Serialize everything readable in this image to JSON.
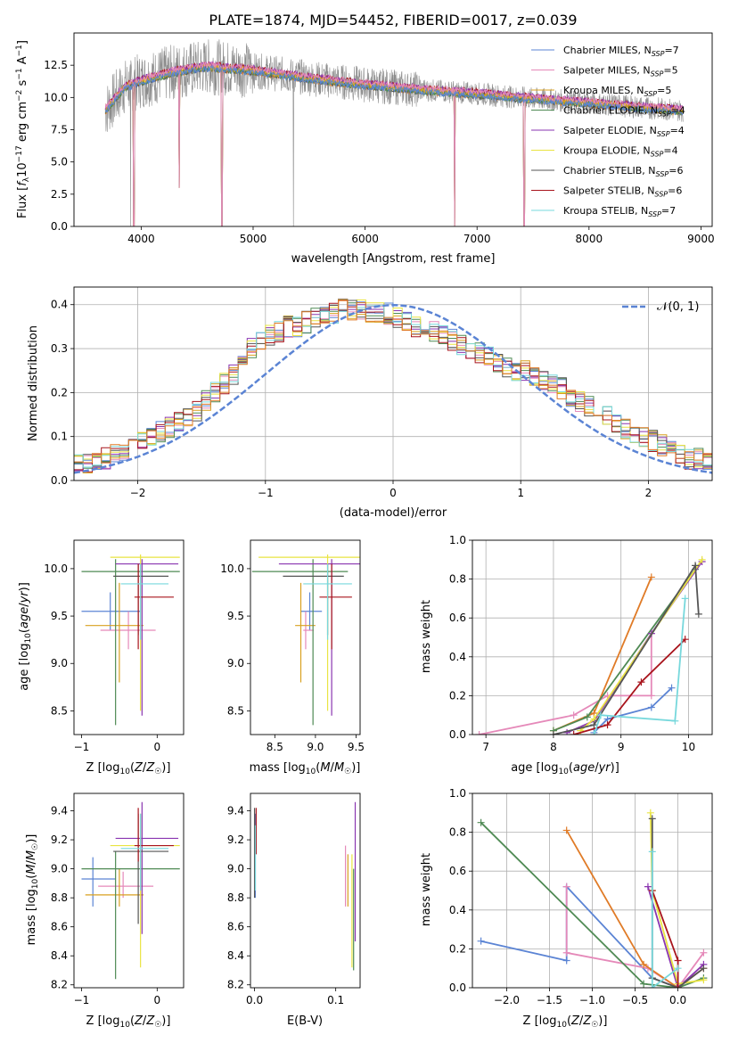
{
  "figure": {
    "title": "PLATE=1874, MJD=54452, FIBERID=0017, z=0.039"
  },
  "colors": {
    "models": [
      "#5b84d4",
      "#e589b9",
      "#d8a11f",
      "#4f8a54",
      "#8a35b0",
      "#e9e442",
      "#555555",
      "#a8141c",
      "#77d8dc"
    ],
    "extra_orange": "#e07b27",
    "data_gray": "#8c8c8c",
    "normal_dash": "#5b84d4",
    "grid": "#b0b0b0"
  },
  "legend_spectrum": [
    {
      "prefix": "Chabrier MILES, N",
      "sub": "SSP",
      "suffix": "=7"
    },
    {
      "prefix": "Salpeter MILES, N",
      "sub": "SSP",
      "suffix": "=5"
    },
    {
      "prefix": "Kroupa MILES, N",
      "sub": "SSP",
      "suffix": "=5"
    },
    {
      "prefix": "Chabrier ELODIE, N",
      "sub": "SSP",
      "suffix": "=4"
    },
    {
      "prefix": "Salpeter ELODIE, N",
      "sub": "SSP",
      "suffix": "=4"
    },
    {
      "prefix": "Kroupa ELODIE, N",
      "sub": "SSP",
      "suffix": "=4"
    },
    {
      "prefix": "Chabrier STELIB, N",
      "sub": "SSP",
      "suffix": "=6"
    },
    {
      "prefix": "Salpeter STELIB, N",
      "sub": "SSP",
      "suffix": "=6"
    },
    {
      "prefix": "Kroupa STELIB, N",
      "sub": "SSP",
      "suffix": "=7"
    }
  ],
  "legend_hist": "𝒩(0, 1)",
  "chart_data": [
    {
      "id": "spectrum",
      "type": "line",
      "xlabel": "wavelength [Angstrom, rest frame]",
      "ylabel": "Flux [f_λ 10^-17 erg cm^-2 s^-1 A^-1]",
      "xlim": [
        3400,
        9100
      ],
      "ylim": [
        0,
        15
      ],
      "xticks": [
        4000,
        5000,
        6000,
        7000,
        8000,
        9000
      ],
      "yticks": [
        0.0,
        2.5,
        5.0,
        7.5,
        10.0,
        12.5
      ],
      "ytick_labels": [
        "0.0",
        "2.5",
        "5.0",
        "7.5",
        "10.0",
        "12.5"
      ],
      "x_start": 3680,
      "x_end": 8840,
      "continuum": [
        [
          3680,
          9.0
        ],
        [
          3850,
          10.8
        ],
        [
          4000,
          11.3
        ],
        [
          4300,
          12.0
        ],
        [
          4600,
          12.4
        ],
        [
          5000,
          12.1
        ],
        [
          5500,
          11.5
        ],
        [
          6000,
          11.0
        ],
        [
          6500,
          10.6
        ],
        [
          7000,
          10.3
        ],
        [
          7500,
          9.9
        ],
        [
          8000,
          9.6
        ],
        [
          8500,
          9.2
        ],
        [
          8840,
          9.0
        ]
      ],
      "absorption_lines": [
        [
          3934,
          0.0
        ],
        [
          4340,
          3.0
        ],
        [
          4720,
          0.0
        ],
        [
          6800,
          0.0
        ],
        [
          7420,
          0.0
        ]
      ],
      "data_dips": [
        5360,
        3905,
        6800
      ]
    },
    {
      "id": "residual_hist",
      "type": "histogram",
      "xlabel": "(data-model)/error",
      "ylabel": "Normed distribution",
      "xlim": [
        -2.5,
        2.5
      ],
      "ylim": [
        0,
        0.44
      ],
      "xticks": [
        -2,
        -1,
        0,
        1,
        2
      ],
      "xtick_labels": [
        "−2",
        "−1",
        "0",
        "1",
        "2"
      ],
      "yticks": [
        0.0,
        0.1,
        0.2,
        0.3,
        0.4
      ],
      "ytick_labels": [
        "0.0",
        "0.1",
        "0.2",
        "0.3",
        "0.4"
      ],
      "bin_width": 0.1,
      "base": [
        0.04,
        0.04,
        0.04,
        0.05,
        0.06,
        0.07,
        0.08,
        0.09,
        0.1,
        0.11,
        0.12,
        0.13,
        0.14,
        0.16,
        0.18,
        0.2,
        0.22,
        0.24,
        0.27,
        0.3,
        0.32,
        0.33,
        0.34,
        0.35,
        0.35,
        0.36,
        0.37,
        0.37,
        0.38,
        0.39,
        0.39,
        0.39,
        0.38,
        0.38,
        0.38,
        0.37,
        0.36,
        0.35,
        0.35,
        0.34,
        0.33,
        0.32,
        0.31,
        0.3,
        0.29,
        0.28,
        0.27,
        0.26,
        0.25,
        0.25,
        0.24,
        0.23,
        0.22,
        0.21,
        0.19,
        0.18,
        0.17,
        0.16,
        0.15,
        0.13,
        0.12,
        0.11,
        0.1,
        0.09,
        0.08,
        0.07,
        0.06,
        0.05,
        0.05,
        0.04
      ],
      "normal": {
        "name": "𝒩(0, 1)",
        "mean": 0,
        "sd": 1
      }
    },
    {
      "id": "age_vs_Z",
      "type": "errorbar",
      "xlabel": "Z [log10(Z/Z☉)]",
      "ylabel": "age  [log10(age/yr)]",
      "xlim": [
        -1.1,
        0.35
      ],
      "ylim": [
        8.25,
        10.3
      ],
      "xticks": [
        -1,
        0
      ],
      "xtick_labels": [
        "−1",
        "0"
      ],
      "yticks": [
        8.5,
        9.0,
        9.5,
        10.0
      ],
      "ytick_labels": [
        "8.5",
        "9.0",
        "9.5",
        "10.0"
      ],
      "points": [
        {
          "x": -0.62,
          "xlo": -1.0,
          "xhi": -0.22,
          "y": 9.55,
          "ylo": 9.35,
          "yhi": 9.75
        },
        {
          "x": -0.38,
          "xlo": -0.75,
          "xhi": -0.02,
          "y": 9.35,
          "ylo": 9.15,
          "yhi": 9.55
        },
        {
          "x": -0.5,
          "xlo": -0.95,
          "xhi": -0.18,
          "y": 9.4,
          "ylo": 8.8,
          "yhi": 9.85
        },
        {
          "x": -0.55,
          "xlo": -1.0,
          "xhi": 0.3,
          "y": 9.97,
          "ylo": 8.35,
          "yhi": 10.1
        },
        {
          "x": -0.2,
          "xlo": -0.55,
          "xhi": 0.28,
          "y": 10.05,
          "ylo": 8.45,
          "yhi": 10.1
        },
        {
          "x": -0.22,
          "xlo": -0.62,
          "xhi": 0.3,
          "y": 10.12,
          "ylo": 8.5,
          "yhi": 10.15
        },
        {
          "x": -0.25,
          "xlo": -0.58,
          "xhi": 0.15,
          "y": 9.92,
          "ylo": 9.3,
          "yhi": 10.05
        },
        {
          "x": -0.25,
          "xlo": -0.3,
          "xhi": 0.22,
          "y": 9.7,
          "ylo": 9.15,
          "yhi": 10.05
        },
        {
          "x": -0.22,
          "xlo": -0.48,
          "xhi": 0.15,
          "y": 9.84,
          "ylo": 9.25,
          "yhi": 10.05
        }
      ]
    },
    {
      "id": "age_vs_mass",
      "type": "errorbar",
      "xlabel": "mass [log10(M/M☉)]",
      "ylabel": "",
      "xlim": [
        8.2,
        9.55
      ],
      "ylim": [
        8.25,
        10.3
      ],
      "xticks": [
        8.5,
        9.0,
        9.5
      ],
      "xtick_labels": [
        "8.5",
        "9.0",
        "9.5"
      ],
      "yticks": [
        8.5,
        9.0,
        9.5,
        10.0
      ],
      "ytick_labels": [
        "8.5",
        "9.0",
        "9.5",
        "10.0"
      ],
      "points": [
        {
          "x": 8.93,
          "xlo": 8.82,
          "xhi": 9.08,
          "y": 9.55,
          "ylo": 9.35,
          "yhi": 9.75
        },
        {
          "x": 8.88,
          "xlo": 8.85,
          "xhi": 8.98,
          "y": 9.35,
          "ylo": 9.15,
          "yhi": 9.55
        },
        {
          "x": 8.82,
          "xlo": 8.75,
          "xhi": 9.0,
          "y": 9.4,
          "ylo": 8.8,
          "yhi": 9.85
        },
        {
          "x": 8.97,
          "xlo": 8.22,
          "xhi": 9.4,
          "y": 9.97,
          "ylo": 8.35,
          "yhi": 10.1
        },
        {
          "x": 9.2,
          "xlo": 8.55,
          "xhi": 9.55,
          "y": 10.05,
          "ylo": 8.45,
          "yhi": 10.1
        },
        {
          "x": 9.15,
          "xlo": 8.3,
          "xhi": 9.55,
          "y": 10.12,
          "ylo": 8.5,
          "yhi": 10.15
        },
        {
          "x": 9.15,
          "xlo": 8.6,
          "xhi": 9.35,
          "y": 9.92,
          "ylo": 9.3,
          "yhi": 10.05
        },
        {
          "x": 9.2,
          "xlo": 9.05,
          "xhi": 9.45,
          "y": 9.7,
          "ylo": 9.15,
          "yhi": 10.05
        },
        {
          "x": 9.15,
          "xlo": 8.85,
          "xhi": 9.45,
          "y": 9.84,
          "ylo": 9.25,
          "yhi": 10.05
        }
      ]
    },
    {
      "id": "mass_weight_vs_age",
      "type": "line",
      "xlabel": "age  [log10(age/yr)]",
      "ylabel": "mass weight",
      "xlim": [
        6.8,
        10.35
      ],
      "ylim": [
        0,
        1.0
      ],
      "xticks": [
        7,
        8,
        9,
        10
      ],
      "xtick_labels": [
        "7",
        "8",
        "9",
        "10"
      ],
      "yticks": [
        0.0,
        0.2,
        0.4,
        0.6,
        0.8,
        1.0
      ],
      "ytick_labels": [
        "0.0",
        "0.2",
        "0.4",
        "0.6",
        "0.8",
        "1.0"
      ],
      "series": [
        {
          "x": [
            8.6,
            8.8,
            9.45,
            9.75
          ],
          "y": [
            0.01,
            0.08,
            0.14,
            0.24
          ]
        },
        {
          "x": [
            6.9,
            8.3,
            8.8,
            9.45,
            9.45
          ],
          "y": [
            0.0,
            0.1,
            0.2,
            0.2,
            0.52
          ]
        },
        {
          "x": [
            8.0,
            8.6,
            9.45
          ],
          "y": [
            0.02,
            0.11,
            0.81
          ]
        },
        {
          "x": [
            8.0,
            8.5,
            10.1
          ],
          "y": [
            0.02,
            0.09,
            0.85
          ]
        },
        {
          "x": [
            8.2,
            8.6,
            9.45,
            10.2
          ],
          "y": [
            0.01,
            0.07,
            0.52,
            0.89
          ]
        },
        {
          "x": [
            8.4,
            8.6,
            10.2
          ],
          "y": [
            0.02,
            0.08,
            0.9
          ]
        },
        {
          "x": [
            8.0,
            8.6,
            10.1,
            10.15
          ],
          "y": [
            0.0,
            0.05,
            0.87,
            0.62
          ]
        },
        {
          "x": [
            8.3,
            8.8,
            9.3,
            9.95
          ],
          "y": [
            0.0,
            0.05,
            0.27,
            0.49
          ]
        },
        {
          "x": [
            8.6,
            8.7,
            9.8,
            9.95
          ],
          "y": [
            0.0,
            0.1,
            0.07,
            0.7
          ]
        }
      ]
    },
    {
      "id": "mass_vs_Z",
      "type": "errorbar",
      "xlabel": "Z [log10(Z/Z☉)]",
      "ylabel": "mass [log10(M/M☉)]",
      "xlim": [
        -1.1,
        0.35
      ],
      "ylim": [
        8.18,
        9.52
      ],
      "xticks": [
        -1,
        0
      ],
      "xtick_labels": [
        "−1",
        "0"
      ],
      "yticks": [
        8.2,
        8.4,
        8.6,
        8.8,
        9.0,
        9.2,
        9.4
      ],
      "ytick_labels": [
        "8.2",
        "8.4",
        "8.6",
        "8.8",
        "9.0",
        "9.2",
        "9.4"
      ],
      "points": [
        {
          "x": -0.85,
          "xlo": -1.0,
          "xhi": -0.55,
          "y": 8.93,
          "ylo": 8.74,
          "yhi": 9.08
        },
        {
          "x": -0.45,
          "xlo": -0.78,
          "xhi": -0.05,
          "y": 8.88,
          "ylo": 8.8,
          "yhi": 8.98
        },
        {
          "x": -0.5,
          "xlo": -0.95,
          "xhi": -0.18,
          "y": 8.82,
          "ylo": 8.74,
          "yhi": 9.0
        },
        {
          "x": -0.55,
          "xlo": -1.0,
          "xhi": 0.3,
          "y": 9.0,
          "ylo": 8.24,
          "yhi": 9.12
        },
        {
          "x": -0.2,
          "xlo": -0.55,
          "xhi": 0.28,
          "y": 9.21,
          "ylo": 8.55,
          "yhi": 9.46
        },
        {
          "x": -0.22,
          "xlo": -0.62,
          "xhi": 0.3,
          "y": 9.16,
          "ylo": 8.32,
          "yhi": 9.38
        },
        {
          "x": -0.25,
          "xlo": -0.58,
          "xhi": 0.15,
          "y": 9.12,
          "ylo": 8.62,
          "yhi": 9.38
        },
        {
          "x": -0.25,
          "xlo": -0.3,
          "xhi": 0.22,
          "y": 9.16,
          "ylo": 9.05,
          "yhi": 9.42
        },
        {
          "x": -0.22,
          "xlo": -0.48,
          "xhi": 0.15,
          "y": 9.14,
          "ylo": 8.85,
          "yhi": 9.38
        }
      ]
    },
    {
      "id": "mass_vs_ebv",
      "type": "errorbar",
      "xlabel": "E(B-V)",
      "ylabel": "",
      "xlim": [
        -0.005,
        0.13
      ],
      "ylim": [
        8.18,
        9.52
      ],
      "xticks": [
        0.0,
        0.1
      ],
      "xtick_labels": [
        "0.0",
        "0.1"
      ],
      "yticks": [
        8.2,
        8.4,
        8.6,
        8.8,
        9.0,
        9.2,
        9.4
      ],
      "ytick_labels": [
        "8.2",
        "8.4",
        "8.6",
        "8.8",
        "9.0",
        "9.2",
        "9.4"
      ],
      "points": [
        {
          "x": 0.001,
          "xlo": 0.001,
          "xhi": 0.001,
          "y": 9.0,
          "ylo": 8.8,
          "yhi": 9.38
        },
        {
          "x": 0.112,
          "xlo": 0.112,
          "xhi": 0.112,
          "y": 8.9,
          "ylo": 8.74,
          "yhi": 9.16
        },
        {
          "x": 0.115,
          "xlo": 0.115,
          "xhi": 0.115,
          "y": 8.9,
          "ylo": 8.74,
          "yhi": 9.1
        },
        {
          "x": 0.122,
          "xlo": 0.122,
          "xhi": 0.122,
          "y": 8.6,
          "ylo": 8.3,
          "yhi": 9.0
        },
        {
          "x": 0.124,
          "xlo": 0.124,
          "xhi": 0.124,
          "y": 9.0,
          "ylo": 8.5,
          "yhi": 9.46
        },
        {
          "x": 0.12,
          "xlo": 0.12,
          "xhi": 0.12,
          "y": 8.8,
          "ylo": 8.32,
          "yhi": 9.1
        },
        {
          "x": 0.0,
          "xlo": 0.0,
          "xhi": 0.0,
          "y": 9.2,
          "ylo": 8.8,
          "yhi": 9.42
        },
        {
          "x": 0.002,
          "xlo": 0.002,
          "xhi": 0.002,
          "y": 9.3,
          "ylo": 9.1,
          "yhi": 9.42
        },
        {
          "x": 0.001,
          "xlo": 0.001,
          "xhi": 0.001,
          "y": 9.1,
          "ylo": 8.85,
          "yhi": 9.3
        }
      ]
    },
    {
      "id": "mass_weight_vs_Z",
      "type": "line",
      "xlabel": "Z [log10(Z/Z☉)]",
      "ylabel": "mass weight",
      "xlim": [
        -2.4,
        0.4
      ],
      "ylim": [
        0,
        1.0
      ],
      "xticks": [
        -2.0,
        -1.5,
        -1.0,
        -0.5,
        0.0
      ],
      "xtick_labels": [
        "−2.0",
        "−1.5",
        "−1.0",
        "−0.5",
        "0.0"
      ],
      "yticks": [
        0.0,
        0.2,
        0.4,
        0.6,
        0.8,
        1.0
      ],
      "ytick_labels": [
        "0.0",
        "0.2",
        "0.4",
        "0.6",
        "0.8",
        "1.0"
      ],
      "series": [
        {
          "x": [
            -2.3,
            -1.3,
            -1.3,
            -0.3,
            0.0
          ],
          "y": [
            0.24,
            0.14,
            0.52,
            0.05,
            0.0
          ]
        },
        {
          "x": [
            -1.3,
            -1.3,
            -0.35,
            0.0,
            0.3
          ],
          "y": [
            0.52,
            0.18,
            0.1,
            0.0,
            0.18
          ]
        },
        {
          "x": [
            -1.3,
            -0.4,
            0.0,
            0.3
          ],
          "y": [
            0.81,
            0.12,
            0.0,
            0.1
          ]
        },
        {
          "x": [
            -2.3,
            -0.4,
            0.0,
            0.3
          ],
          "y": [
            0.85,
            0.02,
            0.0,
            0.05
          ]
        },
        {
          "x": [
            -0.35,
            0.0,
            0.3
          ],
          "y": [
            0.52,
            0.0,
            0.12
          ]
        },
        {
          "x": [
            -0.32,
            -0.3,
            0.0,
            0.3
          ],
          "y": [
            0.9,
            0.5,
            0.02,
            0.04
          ]
        },
        {
          "x": [
            -0.3,
            -0.3,
            0.0,
            0.3
          ],
          "y": [
            0.87,
            0.05,
            0.0,
            0.1
          ]
        },
        {
          "x": [
            -0.3,
            0.0,
            0.0
          ],
          "y": [
            0.5,
            0.14,
            0.0
          ]
        },
        {
          "x": [
            -0.3,
            -0.3,
            0.0
          ],
          "y": [
            0.7,
            0.0,
            0.1
          ]
        }
      ]
    }
  ]
}
